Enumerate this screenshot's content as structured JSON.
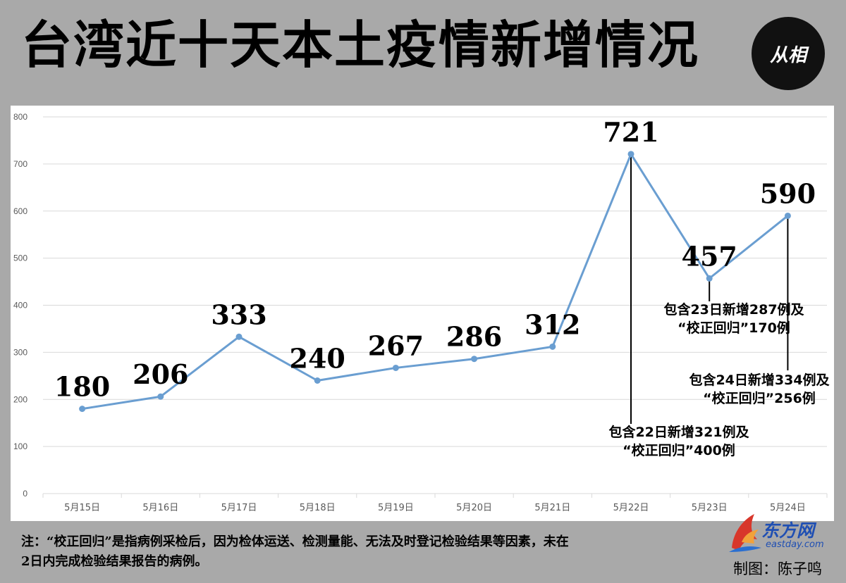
{
  "title": "台湾近十天本土疫情新增情况",
  "logo_congxiang": {
    "text": "从相"
  },
  "chart_data": {
    "type": "line",
    "title": "台湾近十天本土疫情新增情况",
    "categories": [
      "5月15日",
      "5月16日",
      "5月17日",
      "5月18日",
      "5月19日",
      "5月20日",
      "5月21日",
      "5月22日",
      "5月23日",
      "5月24日"
    ],
    "values": [
      180,
      206,
      333,
      240,
      267,
      286,
      312,
      721,
      457,
      590
    ],
    "ylim": [
      0,
      800
    ],
    "yticks": [
      0,
      100,
      200,
      300,
      400,
      500,
      600,
      700,
      800
    ],
    "grid": true,
    "line_color": "#6a9ed1",
    "annotations": [
      {
        "category": "5月22日",
        "lines": [
          "包含22日新增321例及",
          "“校正回归”400例"
        ]
      },
      {
        "category": "5月23日",
        "lines": [
          "包含23日新增287例及",
          "“校正回归”170例"
        ]
      },
      {
        "category": "5月24日",
        "lines": [
          "包含24日新增334例及",
          "“校正回归”256例"
        ]
      }
    ]
  },
  "footnote": {
    "line1": "注：“校正回归”是指病例采检后，因为检体运送、检测量能、无法及时登记检验结果等因素，未在",
    "line2": "2日内完成检验结果报告的病例。"
  },
  "logo_eastday": {
    "cn": "东方网",
    "en": "eastday.com"
  },
  "credit": "制图：陈子鸣"
}
